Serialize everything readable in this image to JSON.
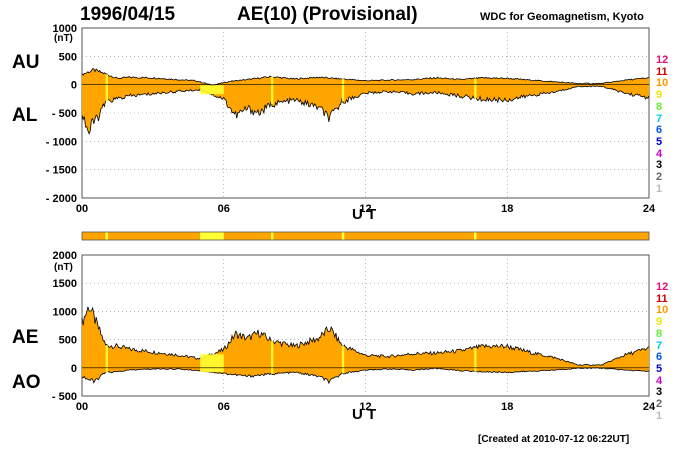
{
  "header": {
    "date": "1996/04/15",
    "title": "AE(10) (Provisional)",
    "source": "WDC for Geomagnetism, Kyoto"
  },
  "footer": {
    "created": "[Created at 2010-07-12 06:22UT]"
  },
  "colors": {
    "fill": "#FFA500",
    "highlight": "#FFFF33",
    "line": "#000000",
    "axis": "#555555",
    "grid": "#888888"
  },
  "chart_data": [
    {
      "type": "area",
      "ylabel": "(nT)",
      "xlabel": "U T",
      "upper_label": "AU",
      "lower_label": "AL",
      "ylim": [
        -2000,
        1000
      ],
      "yticks": [
        "1000",
        "500",
        "0",
        "- 500",
        "- 1000",
        "- 1500",
        "- 2000"
      ],
      "ytick_values": [
        1000,
        500,
        0,
        -500,
        -1000,
        -1500,
        -2000
      ],
      "xticks": [
        "00",
        "06",
        "12",
        "18",
        "24"
      ],
      "xtick_values": [
        0,
        6,
        12,
        18,
        24
      ],
      "grid": "dotted",
      "series": [
        {
          "name": "AU",
          "x": [
            0,
            0.5,
            1,
            1.5,
            2,
            3,
            4,
            4.8,
            5.5,
            6.3,
            7,
            8,
            9,
            10,
            11,
            12,
            13,
            14,
            15,
            16,
            17,
            18,
            19,
            20,
            21,
            22,
            23,
            24
          ],
          "values": [
            180,
            260,
            190,
            110,
            130,
            120,
            90,
            70,
            -10,
            60,
            90,
            140,
            100,
            130,
            100,
            70,
            80,
            90,
            120,
            90,
            120,
            110,
            80,
            50,
            20,
            20,
            80,
            120
          ]
        },
        {
          "name": "AL",
          "x": [
            0,
            0.3,
            0.5,
            0.8,
            1,
            1.5,
            2,
            3,
            4,
            5,
            6,
            6.5,
            7,
            7.5,
            8,
            9,
            10,
            10.5,
            11,
            12,
            13,
            14,
            15,
            16,
            17,
            18,
            19,
            20,
            21,
            22,
            23,
            24
          ],
          "values": [
            -500,
            -850,
            -650,
            -500,
            -300,
            -250,
            -200,
            -160,
            -120,
            -90,
            -250,
            -550,
            -420,
            -500,
            -350,
            -270,
            -400,
            -600,
            -300,
            -150,
            -120,
            -160,
            -140,
            -200,
            -260,
            -270,
            -190,
            -130,
            -30,
            -30,
            -150,
            -230
          ]
        }
      ]
    },
    {
      "type": "area",
      "ylabel": "(nT)",
      "xlabel": "U T",
      "upper_label": "AE",
      "lower_label": "AO",
      "ylim": [
        -500,
        2000
      ],
      "yticks": [
        "2000",
        "1500",
        "1000",
        "500",
        "0",
        "- 500"
      ],
      "ytick_values": [
        2000,
        1500,
        1000,
        500,
        0,
        -500
      ],
      "xticks": [
        "00",
        "06",
        "12",
        "18",
        "24"
      ],
      "xtick_values": [
        0,
        6,
        12,
        18,
        24
      ],
      "grid": "dotted",
      "series": [
        {
          "name": "AE",
          "x": [
            0,
            0.3,
            0.5,
            0.8,
            1,
            1.5,
            2,
            3,
            4,
            5,
            6,
            6.5,
            7,
            7.5,
            8,
            9,
            10,
            10.5,
            11,
            12,
            13,
            14,
            15,
            16,
            17,
            18,
            19,
            20,
            21,
            22,
            23,
            24
          ],
          "values": [
            800,
            1100,
            900,
            600,
            400,
            380,
            330,
            280,
            230,
            160,
            320,
            600,
            520,
            620,
            480,
            380,
            520,
            700,
            400,
            220,
            200,
            250,
            260,
            300,
            380,
            380,
            270,
            180,
            50,
            50,
            230,
            350
          ]
        },
        {
          "name": "AO",
          "x": [
            0,
            0.5,
            1,
            1.5,
            2,
            3,
            4,
            5,
            6,
            7,
            8,
            9,
            10,
            10.5,
            11,
            12,
            13,
            14,
            15,
            16,
            17,
            18,
            19,
            20,
            21,
            22,
            23,
            24
          ],
          "values": [
            -150,
            -250,
            -80,
            -70,
            -40,
            -20,
            -20,
            -50,
            -100,
            -150,
            -110,
            -80,
            -150,
            -250,
            -100,
            -40,
            -20,
            -40,
            -10,
            -50,
            -70,
            -80,
            -60,
            -40,
            -5,
            -5,
            -40,
            -60
          ]
        }
      ]
    }
  ],
  "quality_strip": {
    "segments": [
      {
        "start": 0,
        "end": 1.0,
        "level": "orange"
      },
      {
        "start": 1.0,
        "end": 1.1,
        "level": "yellow"
      },
      {
        "start": 1.1,
        "end": 5.0,
        "level": "orange"
      },
      {
        "start": 5.0,
        "end": 6.0,
        "level": "yellow"
      },
      {
        "start": 6.0,
        "end": 8.0,
        "level": "orange"
      },
      {
        "start": 8.0,
        "end": 8.1,
        "level": "yellow"
      },
      {
        "start": 8.1,
        "end": 11.0,
        "level": "orange"
      },
      {
        "start": 11.0,
        "end": 11.1,
        "level": "yellow"
      },
      {
        "start": 11.1,
        "end": 16.6,
        "level": "orange"
      },
      {
        "start": 16.6,
        "end": 16.7,
        "level": "yellow"
      },
      {
        "start": 16.7,
        "end": 24,
        "level": "orange"
      }
    ]
  },
  "station_scale": {
    "labels": [
      "12",
      "11",
      "10",
      "9",
      "8",
      "7",
      "6",
      "5",
      "4",
      "3",
      "2",
      "1"
    ],
    "colors": [
      "#E0107A",
      "#CC0000",
      "#FF9900",
      "#E6E600",
      "#66EE33",
      "#00CCEE",
      "#0055EE",
      "#0000CC",
      "#CC00CC",
      "#000000",
      "#666666",
      "#BBBBBB"
    ]
  }
}
